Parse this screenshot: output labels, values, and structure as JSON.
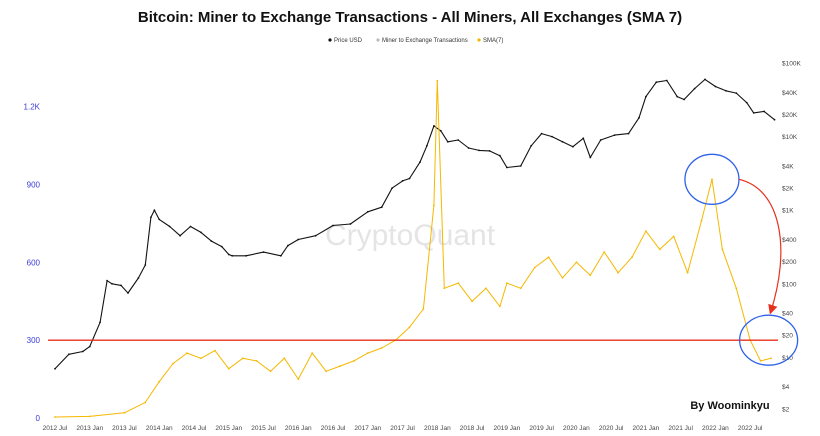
{
  "chart_data": {
    "type": "line",
    "title": "Bitcoin: Miner to Exchange Transactions - All Miners, All Exchanges (SMA 7)",
    "legend": {
      "placement": "top-center",
      "entries": [
        {
          "label": "Price USD",
          "color": "#111111"
        },
        {
          "label": "Miner to Exchange Transactions",
          "color": "#bbbbbb"
        },
        {
          "label": "SMA(7)",
          "color": "#f5b800"
        }
      ]
    },
    "x_tick_labels": [
      "2012 Jul",
      "2013 Jan",
      "2013 Jul",
      "2014 Jan",
      "2014 Jul",
      "2015 Jan",
      "2015 Jul",
      "2016 Jan",
      "2016 Jul",
      "2017 Jan",
      "2017 Jul",
      "2018 Jan",
      "2018 Jul",
      "2019 Jan",
      "2019 Jul",
      "2020 Jan",
      "2020 Jul",
      "2021 Jan",
      "2021 Jul",
      "2022 Jan",
      "2022 Jul"
    ],
    "x_range": [
      2012.4,
      2022.9
    ],
    "left_axis": {
      "ticks": [
        "0",
        "300",
        "600",
        "900",
        "1.2K"
      ],
      "range": [
        0,
        1380
      ],
      "color": "#3b3bd6"
    },
    "right_axis": {
      "scale": "log",
      "ticks": [
        "$2",
        "$4",
        "$10",
        "$20",
        "$40",
        "$100",
        "$200",
        "$400",
        "$1K",
        "$2K",
        "$4K",
        "$10K",
        "$20K",
        "$40K",
        "$100K"
      ],
      "range": [
        1.5,
        110000
      ]
    },
    "grid": false,
    "series": [
      {
        "name": "Price USD",
        "axis": "right",
        "color": "#111111",
        "x": [
          2012.5,
          2012.7,
          2012.9,
          2013.0,
          2013.15,
          2013.25,
          2013.32,
          2013.45,
          2013.55,
          2013.7,
          2013.8,
          2013.88,
          2013.93,
          2014.0,
          2014.15,
          2014.3,
          2014.45,
          2014.6,
          2014.75,
          2014.9,
          2015.0,
          2015.05,
          2015.25,
          2015.5,
          2015.75,
          2015.85,
          2016.0,
          2016.25,
          2016.5,
          2016.75,
          2017.0,
          2017.2,
          2017.35,
          2017.5,
          2017.6,
          2017.75,
          2017.85,
          2017.95,
          2018.05,
          2018.15,
          2018.3,
          2018.45,
          2018.6,
          2018.75,
          2018.9,
          2019.0,
          2019.2,
          2019.35,
          2019.5,
          2019.65,
          2019.8,
          2019.95,
          2020.1,
          2020.2,
          2020.35,
          2020.55,
          2020.75,
          2020.9,
          2021.0,
          2021.15,
          2021.3,
          2021.45,
          2021.55,
          2021.7,
          2021.85,
          2022.0,
          2022.15,
          2022.3,
          2022.45,
          2022.55,
          2022.7,
          2022.85
        ],
        "values": [
          7,
          11,
          12,
          14,
          30,
          110,
          100,
          95,
          75,
          120,
          180,
          800,
          1000,
          750,
          600,
          450,
          600,
          500,
          380,
          320,
          250,
          240,
          240,
          270,
          240,
          330,
          400,
          450,
          620,
          650,
          950,
          1100,
          2000,
          2500,
          2700,
          4500,
          7500,
          14000,
          12000,
          8500,
          9000,
          7000,
          6500,
          6400,
          5500,
          3800,
          4000,
          7500,
          11000,
          10000,
          8500,
          7300,
          9500,
          5200,
          9000,
          10500,
          11000,
          18000,
          35000,
          55000,
          58000,
          35000,
          32000,
          45000,
          60000,
          48000,
          42000,
          39000,
          29000,
          21000,
          22000,
          17000
        ]
      },
      {
        "name": "SMA(7)",
        "axis": "left",
        "color": "#f5b800",
        "x": [
          2012.5,
          2013.0,
          2013.5,
          2013.8,
          2014.0,
          2014.2,
          2014.4,
          2014.6,
          2014.8,
          2015.0,
          2015.2,
          2015.4,
          2015.6,
          2015.8,
          2016.0,
          2016.2,
          2016.4,
          2016.6,
          2016.8,
          2017.0,
          2017.2,
          2017.4,
          2017.6,
          2017.8,
          2017.95,
          2018.0,
          2018.1,
          2018.3,
          2018.5,
          2018.7,
          2018.9,
          2019.0,
          2019.2,
          2019.4,
          2019.6,
          2019.8,
          2020.0,
          2020.2,
          2020.4,
          2020.6,
          2020.8,
          2021.0,
          2021.2,
          2021.4,
          2021.6,
          2021.8,
          2021.95,
          2022.1,
          2022.3,
          2022.5,
          2022.65,
          2022.8
        ],
        "values": [
          4,
          6,
          20,
          60,
          140,
          210,
          250,
          230,
          260,
          190,
          230,
          220,
          180,
          230,
          150,
          250,
          180,
          200,
          220,
          250,
          270,
          300,
          350,
          420,
          820,
          1300,
          500,
          520,
          450,
          500,
          430,
          520,
          500,
          580,
          620,
          540,
          600,
          550,
          640,
          560,
          620,
          720,
          650,
          700,
          560,
          760,
          920,
          650,
          500,
          300,
          220,
          230
        ]
      }
    ],
    "annotations": {
      "watermark": "CryptoQuant",
      "author": "By Woominkyu",
      "horizontal_line": {
        "value": 300,
        "axis": "left",
        "color": "#e8301c"
      },
      "circles": [
        {
          "at": "2021 Oct peak",
          "color": "#2f62e8"
        },
        {
          "at": "2022 Jul low",
          "color": "#2f62e8"
        }
      ],
      "arrow": {
        "from": "2021 Oct peak",
        "to": "2022 Jul low",
        "color": "#e8301c"
      }
    }
  }
}
